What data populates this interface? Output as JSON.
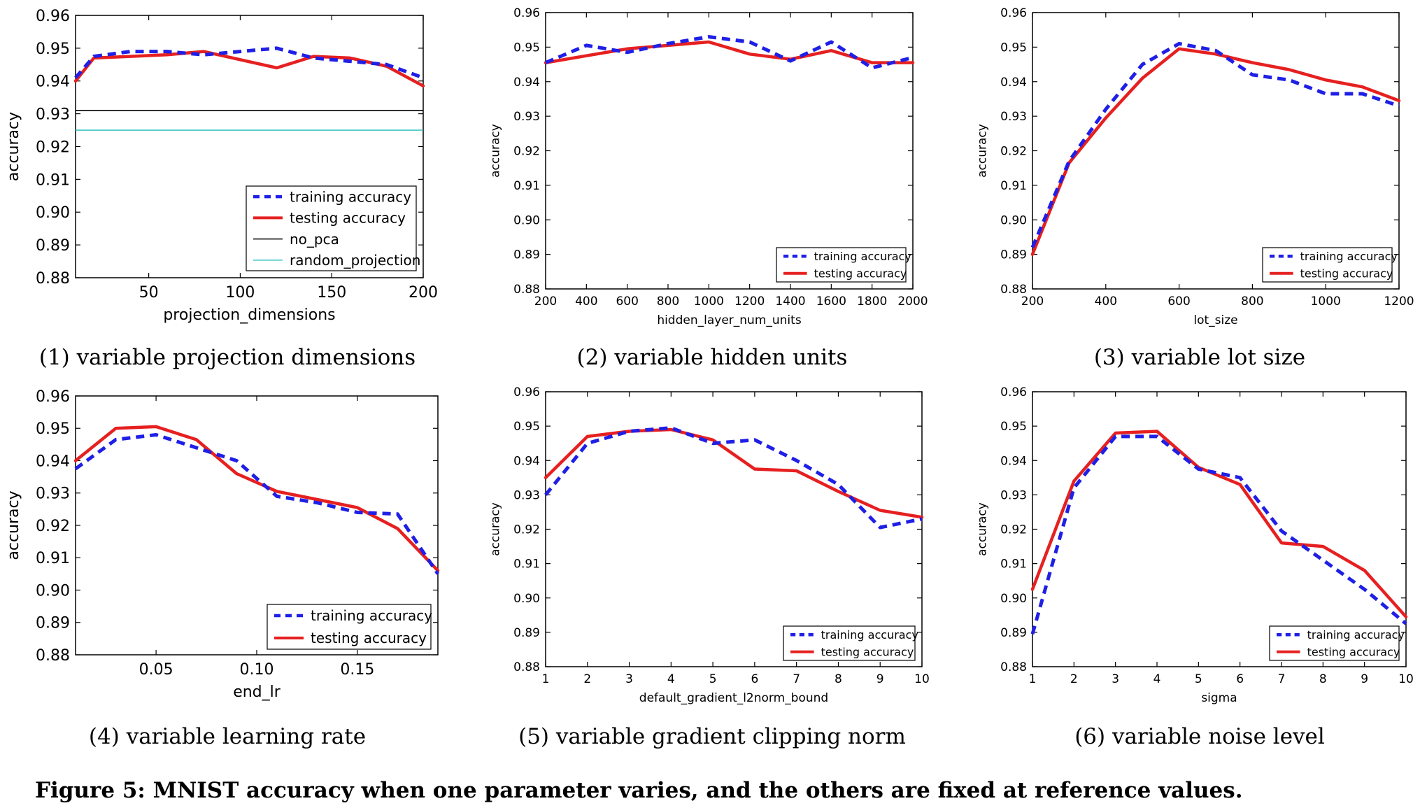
{
  "figure_caption": "Figure 5: MNIST accuracy when one parameter varies, and the others are fixed at reference values.",
  "colors": {
    "training": "#1f1fe6",
    "testing": "#e62020",
    "no_pca": "#000000",
    "random_projection": "#3fc5c5"
  },
  "chart_data": [
    {
      "type": "line",
      "caption": "(1) variable projection dimensions",
      "xlabel": "projection_dimensions",
      "ylabel": "accuracy",
      "xlim": [
        10,
        200
      ],
      "ylim": [
        0.88,
        0.96
      ],
      "xticks": [
        50,
        100,
        150,
        200
      ],
      "yticks": [
        0.88,
        0.89,
        0.9,
        0.91,
        0.92,
        0.93,
        0.94,
        0.95,
        0.96
      ],
      "legend_position": "lower-right",
      "series": [
        {
          "name": "training accuracy",
          "style": "dashed",
          "x": [
            10,
            20,
            40,
            60,
            80,
            100,
            120,
            140,
            160,
            180,
            200
          ],
          "values": [
            0.941,
            0.9475,
            0.949,
            0.949,
            0.948,
            0.949,
            0.95,
            0.947,
            0.946,
            0.945,
            0.941
          ]
        },
        {
          "name": "testing accuracy",
          "style": "solid",
          "x": [
            10,
            20,
            40,
            60,
            80,
            100,
            120,
            140,
            160,
            180,
            200
          ],
          "values": [
            0.94,
            0.947,
            0.9475,
            0.948,
            0.949,
            0.9465,
            0.944,
            0.9475,
            0.947,
            0.9445,
            0.9385
          ]
        },
        {
          "name": "no_pca",
          "style": "hline",
          "x": [
            10,
            200
          ],
          "values": [
            0.931,
            0.931
          ]
        },
        {
          "name": "random_projection",
          "style": "hline",
          "x": [
            10,
            200
          ],
          "values": [
            0.925,
            0.925
          ]
        }
      ]
    },
    {
      "type": "line",
      "caption": "(2) variable hidden units",
      "xlabel": "hidden_layer_num_units",
      "ylabel": "accuracy",
      "xlim": [
        200,
        2000
      ],
      "ylim": [
        0.88,
        0.96
      ],
      "xticks": [
        200,
        400,
        600,
        800,
        1000,
        1200,
        1400,
        1600,
        1800,
        2000
      ],
      "yticks": [
        0.88,
        0.89,
        0.9,
        0.91,
        0.92,
        0.93,
        0.94,
        0.95,
        0.96
      ],
      "legend_position": "lower-right",
      "series": [
        {
          "name": "training accuracy",
          "style": "dashed",
          "x": [
            200,
            400,
            600,
            800,
            1000,
            1200,
            1400,
            1600,
            1800,
            2000
          ],
          "values": [
            0.9455,
            0.9505,
            0.9485,
            0.951,
            0.953,
            0.9515,
            0.946,
            0.9515,
            0.944,
            0.947
          ]
        },
        {
          "name": "testing accuracy",
          "style": "solid",
          "x": [
            200,
            400,
            600,
            800,
            1000,
            1200,
            1400,
            1600,
            1800,
            2000
          ],
          "values": [
            0.9455,
            0.9475,
            0.9495,
            0.9505,
            0.9515,
            0.948,
            0.9465,
            0.949,
            0.9455,
            0.9455
          ]
        }
      ]
    },
    {
      "type": "line",
      "caption": "(3) variable lot size",
      "xlabel": "lot_size",
      "ylabel": "accuracy",
      "xlim": [
        200,
        1200
      ],
      "ylim": [
        0.88,
        0.96
      ],
      "xticks": [
        200,
        400,
        600,
        800,
        1000,
        1200
      ],
      "yticks": [
        0.88,
        0.89,
        0.9,
        0.91,
        0.92,
        0.93,
        0.94,
        0.95,
        0.96
      ],
      "legend_position": "lower-right",
      "series": [
        {
          "name": "training accuracy",
          "style": "dashed",
          "x": [
            200,
            300,
            400,
            500,
            600,
            700,
            800,
            900,
            1000,
            1100,
            1200
          ],
          "values": [
            0.892,
            0.917,
            0.932,
            0.945,
            0.951,
            0.949,
            0.942,
            0.9405,
            0.9365,
            0.9365,
            0.933
          ]
        },
        {
          "name": "testing accuracy",
          "style": "solid",
          "x": [
            200,
            300,
            400,
            500,
            600,
            700,
            800,
            900,
            1000,
            1100,
            1200
          ],
          "values": [
            0.89,
            0.9165,
            0.9295,
            0.941,
            0.9495,
            0.948,
            0.9455,
            0.9435,
            0.9405,
            0.9385,
            0.9345
          ]
        }
      ]
    },
    {
      "type": "line",
      "caption": "(4) variable learning rate",
      "xlabel": "end_lr",
      "ylabel": "accuracy",
      "xlim": [
        0.01,
        0.19
      ],
      "ylim": [
        0.88,
        0.96
      ],
      "xticks": [
        0.05,
        0.1,
        0.15
      ],
      "yticks": [
        0.88,
        0.89,
        0.9,
        0.91,
        0.92,
        0.93,
        0.94,
        0.95,
        0.96
      ],
      "legend_position": "lower-right",
      "series": [
        {
          "name": "training accuracy",
          "style": "dashed",
          "x": [
            0.01,
            0.03,
            0.05,
            0.07,
            0.09,
            0.11,
            0.13,
            0.15,
            0.17,
            0.19
          ],
          "values": [
            0.9375,
            0.9465,
            0.948,
            0.944,
            0.94,
            0.929,
            0.927,
            0.924,
            0.9235,
            0.905
          ]
        },
        {
          "name": "testing accuracy",
          "style": "solid",
          "x": [
            0.01,
            0.03,
            0.05,
            0.07,
            0.09,
            0.11,
            0.13,
            0.15,
            0.17,
            0.19
          ],
          "values": [
            0.94,
            0.95,
            0.9505,
            0.9465,
            0.936,
            0.9305,
            0.928,
            0.9255,
            0.919,
            0.906
          ]
        }
      ]
    },
    {
      "type": "line",
      "caption": "(5) variable gradient clipping norm",
      "xlabel": "default_gradient_l2norm_bound",
      "ylabel": "accuracy",
      "xlim": [
        1,
        10
      ],
      "ylim": [
        0.88,
        0.96
      ],
      "xticks": [
        1,
        2,
        3,
        4,
        5,
        6,
        7,
        8,
        9,
        10
      ],
      "yticks": [
        0.88,
        0.89,
        0.9,
        0.91,
        0.92,
        0.93,
        0.94,
        0.95,
        0.96
      ],
      "legend_position": "lower-right",
      "series": [
        {
          "name": "training accuracy",
          "style": "dashed",
          "x": [
            1,
            2,
            3,
            4,
            5,
            6,
            7,
            8,
            9,
            10
          ],
          "values": [
            0.93,
            0.945,
            0.9485,
            0.9495,
            0.945,
            0.946,
            0.94,
            0.933,
            0.9205,
            0.923
          ]
        },
        {
          "name": "testing accuracy",
          "style": "solid",
          "x": [
            1,
            2,
            3,
            4,
            5,
            6,
            7,
            8,
            9,
            10
          ],
          "values": [
            0.935,
            0.947,
            0.9485,
            0.949,
            0.946,
            0.9375,
            0.937,
            0.931,
            0.9255,
            0.9235
          ]
        }
      ]
    },
    {
      "type": "line",
      "caption": "(6) variable noise level",
      "xlabel": "sigma",
      "ylabel": "accuracy",
      "xlim": [
        1,
        10
      ],
      "ylim": [
        0.88,
        0.96
      ],
      "xticks": [
        1,
        2,
        3,
        4,
        5,
        6,
        7,
        8,
        9,
        10
      ],
      "yticks": [
        0.88,
        0.89,
        0.9,
        0.91,
        0.92,
        0.93,
        0.94,
        0.95,
        0.96
      ],
      "legend_position": "lower-right",
      "series": [
        {
          "name": "training accuracy",
          "style": "dashed",
          "x": [
            1,
            2,
            3,
            4,
            5,
            6,
            7,
            8,
            9,
            10
          ],
          "values": [
            0.8895,
            0.932,
            0.947,
            0.947,
            0.9375,
            0.935,
            0.9195,
            0.911,
            0.9025,
            0.8925
          ]
        },
        {
          "name": "testing accuracy",
          "style": "solid",
          "x": [
            1,
            2,
            3,
            4,
            5,
            6,
            7,
            8,
            9,
            10
          ],
          "values": [
            0.9025,
            0.934,
            0.948,
            0.9485,
            0.938,
            0.933,
            0.916,
            0.915,
            0.908,
            0.8945
          ]
        }
      ]
    }
  ]
}
